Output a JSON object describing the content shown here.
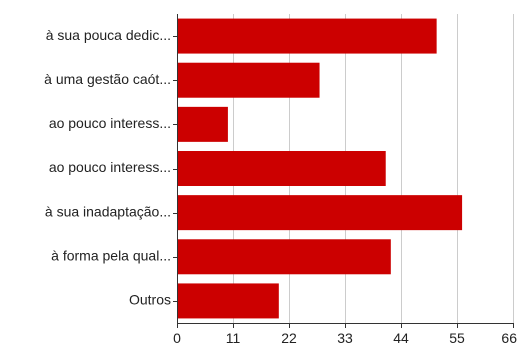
{
  "chart_data": {
    "type": "bar",
    "orientation": "horizontal",
    "categories": [
      "à sua pouca dedic...",
      "à uma gestão caót...",
      "ao pouco interess...",
      "ao pouco interess...",
      "à sua inadaptação...",
      "à forma pela qual...",
      "Outros"
    ],
    "values": [
      51,
      28,
      10,
      41,
      56,
      42,
      20
    ],
    "xlim": [
      0,
      66
    ],
    "xticks": [
      0,
      11,
      22,
      33,
      44,
      55,
      66
    ],
    "title": "",
    "xlabel": "",
    "ylabel": "",
    "grid": true,
    "legend": "none",
    "bar_color": "#cc0000"
  }
}
